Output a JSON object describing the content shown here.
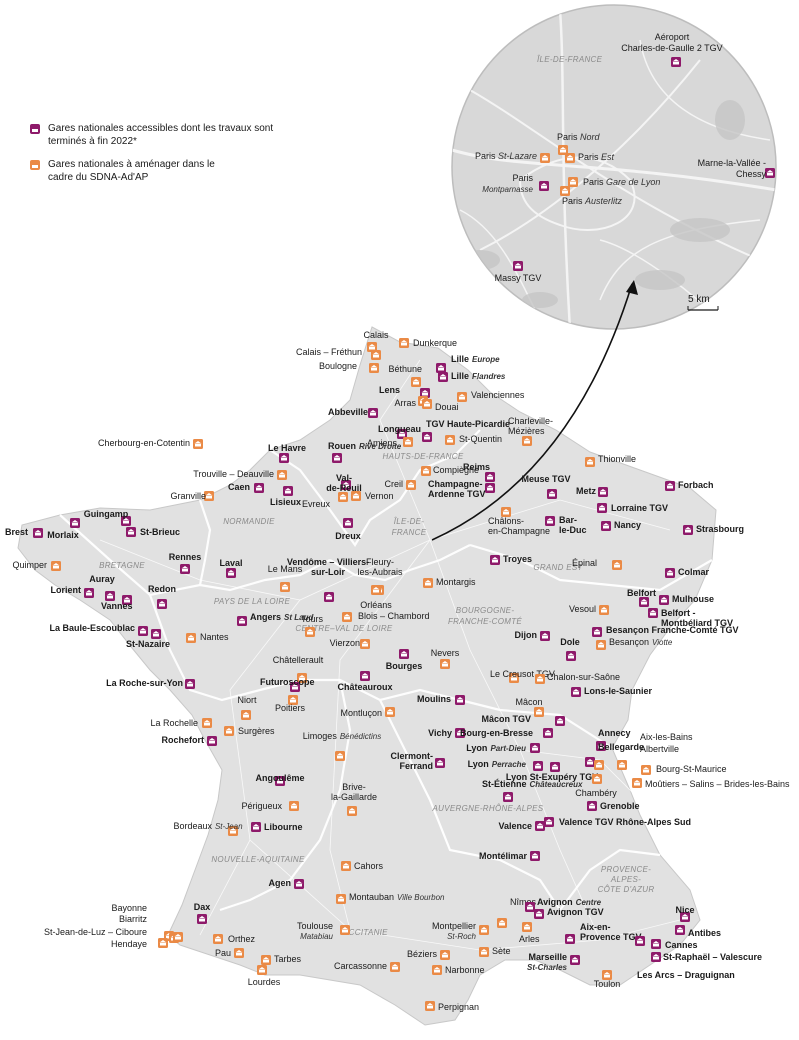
{
  "colors": {
    "accessible": "#8e1a6a",
    "to_upgrade": "#ea8a46",
    "land": "#e1e1e1",
    "border": "#ffffff",
    "zoom_bg": "#d8d8d8"
  },
  "legend": {
    "accessible": "Gares nationales accessibles dont les travaux sont terminés à fin 2022*",
    "to_upgrade": "Gares nationales à aménager dans le cadre du SDNA-Ad'AP"
  },
  "regions": [
    {
      "id": "hdf",
      "name": "HAUTS-DE-FRANCE"
    },
    {
      "id": "normandie",
      "name": "NORMANDIE"
    },
    {
      "id": "idf",
      "name": "ÎLE-DE- FRANCE"
    },
    {
      "id": "bretagne",
      "name": "BRETAGNE"
    },
    {
      "id": "grandest",
      "name": "GRAND EST"
    },
    {
      "id": "pdl",
      "name": "PAYS DE LA LOIRE"
    },
    {
      "id": "cvl",
      "name": "CENTRE–VAL DE LOIRE"
    },
    {
      "id": "bfc",
      "name": "BOURGOGNE- FRANCHE-COMTÉ"
    },
    {
      "id": "na",
      "name": "NOUVELLE-AQUITAINE"
    },
    {
      "id": "ara",
      "name": "AUVERGNE-RHÔNE-ALPES"
    },
    {
      "id": "occ",
      "name": "OCCITANIE"
    },
    {
      "id": "paca",
      "name": "PROVENCE- ALPES- CÔTE D'AZUR"
    }
  ],
  "inset": {
    "region": "ÎLE-DE-FRANCE",
    "scale": "5 km",
    "stations": [
      {
        "id": "cdg2",
        "name": "Aéroport Charles-de-Gaulle 2 TGV",
        "type": "accessible"
      },
      {
        "id": "pnord",
        "name": "Paris Nord",
        "type": "to_upgrade"
      },
      {
        "id": "pest",
        "name": "Paris Est",
        "type": "to_upgrade"
      },
      {
        "id": "pstlaz",
        "name": "Paris St-Lazare",
        "type": "to_upgrade"
      },
      {
        "id": "pmont",
        "name": "Paris Montparnasse",
        "type": "accessible"
      },
      {
        "id": "plyon",
        "name": "Paris Gare de Lyon",
        "type": "to_upgrade"
      },
      {
        "id": "paust",
        "name": "Paris Austerlitz",
        "type": "to_upgrade"
      },
      {
        "id": "mlvc",
        "name": "Marne-la-Vallée - Chessy",
        "type": "accessible"
      },
      {
        "id": "massy",
        "name": "Massy TGV",
        "type": "accessible"
      }
    ]
  },
  "stations": [
    {
      "id": "calais",
      "name": "Calais",
      "type": "to_upgrade"
    },
    {
      "id": "dunkerque",
      "name": "Dunkerque",
      "type": "to_upgrade"
    },
    {
      "id": "calaisf",
      "name": "Calais – Fréthun",
      "type": "to_upgrade"
    },
    {
      "id": "boulogne",
      "name": "Boulogne",
      "type": "to_upgrade"
    },
    {
      "id": "lilleeu",
      "name": "Lille Europe",
      "type": "accessible"
    },
    {
      "id": "lillefl",
      "name": "Lille Flandres",
      "type": "accessible"
    },
    {
      "id": "bethune",
      "name": "Béthune",
      "type": "to_upgrade"
    },
    {
      "id": "lens",
      "name": "Lens",
      "type": "accessible"
    },
    {
      "id": "arras",
      "name": "Arras",
      "type": "to_upgrade"
    },
    {
      "id": "douai",
      "name": "Douai",
      "type": "to_upgrade"
    },
    {
      "id": "valenciennes",
      "name": "Valenciennes",
      "type": "to_upgrade"
    },
    {
      "id": "abbeville",
      "name": "Abbeville",
      "type": "accessible"
    },
    {
      "id": "longueau",
      "name": "Longueau",
      "type": "accessible"
    },
    {
      "id": "amiens",
      "name": "Amiens",
      "type": "to_upgrade"
    },
    {
      "id": "tgvhp",
      "name": "TGV Haute-Picardie",
      "type": "accessible"
    },
    {
      "id": "charleville",
      "name": "Charleville- Mézières",
      "type": "to_upgrade"
    },
    {
      "id": "stquentin",
      "name": "St-Quentin",
      "type": "to_upgrade"
    },
    {
      "id": "cherbourg",
      "name": "Cherbourg-en-Cotentin",
      "type": "to_upgrade"
    },
    {
      "id": "lehavre",
      "name": "Le Havre",
      "type": "accessible"
    },
    {
      "id": "rouen",
      "name": "Rouen Rive Droite",
      "type": "accessible"
    },
    {
      "id": "trouville",
      "name": "Trouville – Deauville",
      "type": "to_upgrade"
    },
    {
      "id": "compiegne",
      "name": "Compiègne",
      "type": "to_upgrade"
    },
    {
      "id": "reims",
      "name": "Reims",
      "type": "accessible"
    },
    {
      "id": "champardenne",
      "name": "Champagne- Ardenne TGV",
      "type": "accessible"
    },
    {
      "id": "caen",
      "name": "Caen",
      "type": "accessible"
    },
    {
      "id": "valdereuil",
      "name": "Val- de-Reuil",
      "type": "accessible"
    },
    {
      "id": "creil",
      "name": "Creil",
      "type": "to_upgrade"
    },
    {
      "id": "thionville",
      "name": "Thionville",
      "type": "to_upgrade"
    },
    {
      "id": "granville",
      "name": "Granville",
      "type": "to_upgrade"
    },
    {
      "id": "lisieux",
      "name": "Lisieux",
      "type": "accessible"
    },
    {
      "id": "evreux",
      "name": "Evreux",
      "type": "to_upgrade"
    },
    {
      "id": "vernon",
      "name": "Vernon",
      "type": "to_upgrade"
    },
    {
      "id": "meusetgv",
      "name": "Meuse TGV",
      "type": "accessible"
    },
    {
      "id": "metz",
      "name": "Metz",
      "type": "accessible"
    },
    {
      "id": "forbach",
      "name": "Forbach",
      "type": "accessible"
    },
    {
      "id": "lorrainetgv",
      "name": "Lorraine TGV",
      "type": "accessible"
    },
    {
      "id": "guingamp",
      "name": "Guingamp",
      "type": "accessible"
    },
    {
      "id": "brest",
      "name": "Brest",
      "type": "accessible"
    },
    {
      "id": "morlaix",
      "name": "Morlaix",
      "type": "accessible"
    },
    {
      "id": "stbrieuc",
      "name": "St-Brieuc",
      "type": "accessible"
    },
    {
      "id": "dreux",
      "name": "Dreux",
      "type": "accessible"
    },
    {
      "id": "chalons",
      "name": "Châlons- en-Champagne",
      "type": "to_upgrade"
    },
    {
      "id": "barleduc",
      "name": "Bar- le-Duc",
      "type": "accessible"
    },
    {
      "id": "nancy",
      "name": "Nancy",
      "type": "accessible"
    },
    {
      "id": "strasbourg",
      "name": "Strasbourg",
      "type": "accessible"
    },
    {
      "id": "quimper",
      "name": "Quimper",
      "type": "to_upgrade"
    },
    {
      "id": "rennes",
      "name": "Rennes",
      "type": "accessible"
    },
    {
      "id": "laval",
      "name": "Laval",
      "type": "accessible"
    },
    {
      "id": "lemans",
      "name": "Le Mans",
      "type": "to_upgrade"
    },
    {
      "id": "vendome",
      "name": "Vendôme – Villiers- sur-Loir",
      "type": "accessible"
    },
    {
      "id": "fleury",
      "name": "Fleury- les-Aubrais",
      "type": "to_upgrade"
    },
    {
      "id": "montargis",
      "name": "Montargis",
      "type": "to_upgrade"
    },
    {
      "id": "troyes",
      "name": "Troyes",
      "type": "accessible"
    },
    {
      "id": "epinal",
      "name": "Épinal",
      "type": "to_upgrade"
    },
    {
      "id": "colmar",
      "name": "Colmar",
      "type": "accessible"
    },
    {
      "id": "lorient",
      "name": "Lorient",
      "type": "accessible"
    },
    {
      "id": "auray",
      "name": "Auray",
      "type": "accessible"
    },
    {
      "id": "vannes",
      "name": "Vannes",
      "type": "accessible"
    },
    {
      "id": "redon",
      "name": "Redon",
      "type": "accessible"
    },
    {
      "id": "orleans",
      "name": "Orléans",
      "type": "to_upgrade"
    },
    {
      "id": "blois",
      "name": "Blois – Chambord",
      "type": "to_upgrade"
    },
    {
      "id": "mulhouse",
      "name": "Mulhouse",
      "type": "accessible"
    },
    {
      "id": "vesoul",
      "name": "Vesoul",
      "type": "to_upgrade"
    },
    {
      "id": "belfort",
      "name": "Belfort",
      "type": "accessible"
    },
    {
      "id": "belfortmtgv",
      "name": "Belfort - Montbéliard TGV",
      "type": "accessible"
    },
    {
      "id": "labaule",
      "name": "La Baule-Escoublac",
      "type": "accessible"
    },
    {
      "id": "angers",
      "name": "Angers St Laud",
      "type": "accessible"
    },
    {
      "id": "tours",
      "name": "Tours",
      "type": "to_upgrade"
    },
    {
      "id": "vierzon",
      "name": "Vierzon",
      "type": "to_upgrade"
    },
    {
      "id": "dijon",
      "name": "Dijon",
      "type": "accessible"
    },
    {
      "id": "besancontgv",
      "name": "Besançon Franche-Comté TGV",
      "type": "accessible"
    },
    {
      "id": "besanconv",
      "name": "Besançon Viotte",
      "type": "to_upgrade"
    },
    {
      "id": "stnazaire",
      "name": "St-Nazaire",
      "type": "accessible"
    },
    {
      "id": "nantes",
      "name": "Nantes",
      "type": "to_upgrade"
    },
    {
      "id": "dole",
      "name": "Dole",
      "type": "accessible"
    },
    {
      "id": "bourges",
      "name": "Bourges",
      "type": "accessible"
    },
    {
      "id": "nevers",
      "name": "Nevers",
      "type": "to_upgrade"
    },
    {
      "id": "chatellerault",
      "name": "Châtellerault",
      "type": "to_upgrade"
    },
    {
      "id": "larochesy",
      "name": "La Roche-sur-Yon",
      "type": "accessible"
    },
    {
      "id": "futuroscope",
      "name": "Futuroscope",
      "type": "accessible"
    },
    {
      "id": "chateauroux",
      "name": "Châteauroux",
      "type": "accessible"
    },
    {
      "id": "lecreusot",
      "name": "Le Creusot TGV",
      "type": "to_upgrade"
    },
    {
      "id": "chalonss",
      "name": "Chalon-sur-Saône",
      "type": "to_upgrade"
    },
    {
      "id": "lonslesaunier",
      "name": "Lons-le-Saunier",
      "type": "accessible"
    },
    {
      "id": "niort",
      "name": "Niort",
      "type": "to_upgrade"
    },
    {
      "id": "poitiers",
      "name": "Poitiers",
      "type": "to_upgrade"
    },
    {
      "id": "moulins",
      "name": "Moulins",
      "type": "accessible"
    },
    {
      "id": "montlucon",
      "name": "Montluçon",
      "type": "to_upgrade"
    },
    {
      "id": "macon",
      "name": "Mâcon",
      "type": "to_upgrade"
    },
    {
      "id": "larochelle",
      "name": "La Rochelle",
      "type": "to_upgrade"
    },
    {
      "id": "surgeres",
      "name": "Surgères",
      "type": "to_upgrade"
    },
    {
      "id": "macontgv",
      "name": "Mâcon TGV",
      "type": "accessible"
    },
    {
      "id": "bellegarde",
      "name": "Bellegarde",
      "type": "accessible"
    },
    {
      "id": "annecy",
      "name": "Annecy",
      "type": "accessible"
    },
    {
      "id": "rochefort",
      "name": "Rochefort",
      "type": "accessible"
    },
    {
      "id": "limoges",
      "name": "Limoges Bénédictins",
      "type": "to_upgrade"
    },
    {
      "id": "vichy",
      "name": "Vichy",
      "type": "accessible"
    },
    {
      "id": "bourgenbresse",
      "name": "Bourg-en-Bresse",
      "type": "accessible"
    },
    {
      "id": "lyonpd",
      "name": "Lyon Part-Dieu",
      "type": "accessible"
    },
    {
      "id": "aixlesbains",
      "name": "Aix-les-Bains",
      "type": "to_upgrade"
    },
    {
      "id": "albertville",
      "name": "Albertville",
      "type": "to_upgrade"
    },
    {
      "id": "clermont",
      "name": "Clermont- Ferrand",
      "type": "accessible"
    },
    {
      "id": "lyonperrache",
      "name": "Lyon Perrache",
      "type": "accessible"
    },
    {
      "id": "lyonstex",
      "name": "Lyon St-Exupéry TGV",
      "type": "accessible"
    },
    {
      "id": "bourgstmaurice",
      "name": "Bourg-St-Maurice",
      "type": "to_upgrade"
    },
    {
      "id": "moutiers",
      "name": "Moûtiers – Salins – Brides-les-Bains",
      "type": "to_upgrade"
    },
    {
      "id": "angouleme",
      "name": "Angoulême",
      "type": "accessible"
    },
    {
      "id": "stetienne",
      "name": "St-Étienne Châteaucreux",
      "type": "accessible"
    },
    {
      "id": "chambery",
      "name": "Chambéry",
      "type": "to_upgrade"
    },
    {
      "id": "brive",
      "name": "Brive- la-Gaillarde",
      "type": "to_upgrade"
    },
    {
      "id": "perigueux",
      "name": "Périgueux",
      "type": "to_upgrade"
    },
    {
      "id": "grenoble",
      "name": "Grenoble",
      "type": "accessible"
    },
    {
      "id": "bordeaux",
      "name": "Bordeaux St-Jean",
      "type": "to_upgrade"
    },
    {
      "id": "libourne",
      "name": "Libourne",
      "type": "accessible"
    },
    {
      "id": "valence",
      "name": "Valence",
      "type": "accessible"
    },
    {
      "id": "valencetgv",
      "name": "Valence TGV Rhône-Alpes Sud",
      "type": "accessible"
    },
    {
      "id": "cahors",
      "name": "Cahors",
      "type": "to_upgrade"
    },
    {
      "id": "montelimar",
      "name": "Montélimar",
      "type": "accessible"
    },
    {
      "id": "agen",
      "name": "Agen",
      "type": "accessible"
    },
    {
      "id": "montauban",
      "name": "Montauban Ville Bourbon",
      "type": "to_upgrade"
    },
    {
      "id": "bayonne",
      "name": "Bayonne",
      "type": "to_upgrade"
    },
    {
      "id": "biarritz",
      "name": "Biarritz",
      "type": "to_upgrade"
    },
    {
      "id": "stjeandeluz",
      "name": "St-Jean-de-Luz – Ciboure",
      "type": "to_upgrade"
    },
    {
      "id": "hendaye",
      "name": "Hendaye",
      "type": "to_upgrade"
    },
    {
      "id": "dax",
      "name": "Dax",
      "type": "accessible"
    },
    {
      "id": "orthez",
      "name": "Orthez",
      "type": "to_upgrade"
    },
    {
      "id": "pau",
      "name": "Pau",
      "type": "to_upgrade"
    },
    {
      "id": "toulouse",
      "name": "Toulouse Matabiau",
      "type": "to_upgrade"
    },
    {
      "id": "tarbes",
      "name": "Tarbes",
      "type": "to_upgrade"
    },
    {
      "id": "lourdes",
      "name": "Lourdes",
      "type": "to_upgrade"
    },
    {
      "id": "nimes",
      "name": "Nîmes",
      "type": "to_upgrade"
    },
    {
      "id": "avignonc",
      "name": "Avignon Centre",
      "type": "accessible"
    },
    {
      "id": "avignontgv",
      "name": "Avignon TGV",
      "type": "accessible"
    },
    {
      "id": "montpellier",
      "name": "Montpellier St-Roch",
      "type": "to_upgrade"
    },
    {
      "id": "arles",
      "name": "Arles",
      "type": "to_upgrade"
    },
    {
      "id": "aixtgv",
      "name": "Aix-en- Provence TGV",
      "type": "accessible"
    },
    {
      "id": "sete",
      "name": "Sète",
      "type": "to_upgrade"
    },
    {
      "id": "beziers",
      "name": "Béziers",
      "type": "to_upgrade"
    },
    {
      "id": "narbonne",
      "name": "Narbonne",
      "type": "to_upgrade"
    },
    {
      "id": "carcassonne",
      "name": "Carcassonne",
      "type": "to_upgrade"
    },
    {
      "id": "marseille",
      "name": "Marseille St-Charles",
      "type": "accessible"
    },
    {
      "id": "toulon",
      "name": "Toulon",
      "type": "to_upgrade"
    },
    {
      "id": "lesarcs",
      "name": "Les Arcs – Draguignan",
      "type": "accessible"
    },
    {
      "id": "straphael",
      "name": "St-Raphaël – Valescure",
      "type": "accessible"
    },
    {
      "id": "cannes",
      "name": "Cannes",
      "type": "accessible"
    },
    {
      "id": "antibes",
      "name": "Antibes",
      "type": "accessible"
    },
    {
      "id": "nice",
      "name": "Nice",
      "type": "accessible"
    },
    {
      "id": "perpignan",
      "name": "Perpignan",
      "type": "to_upgrade"
    }
  ]
}
